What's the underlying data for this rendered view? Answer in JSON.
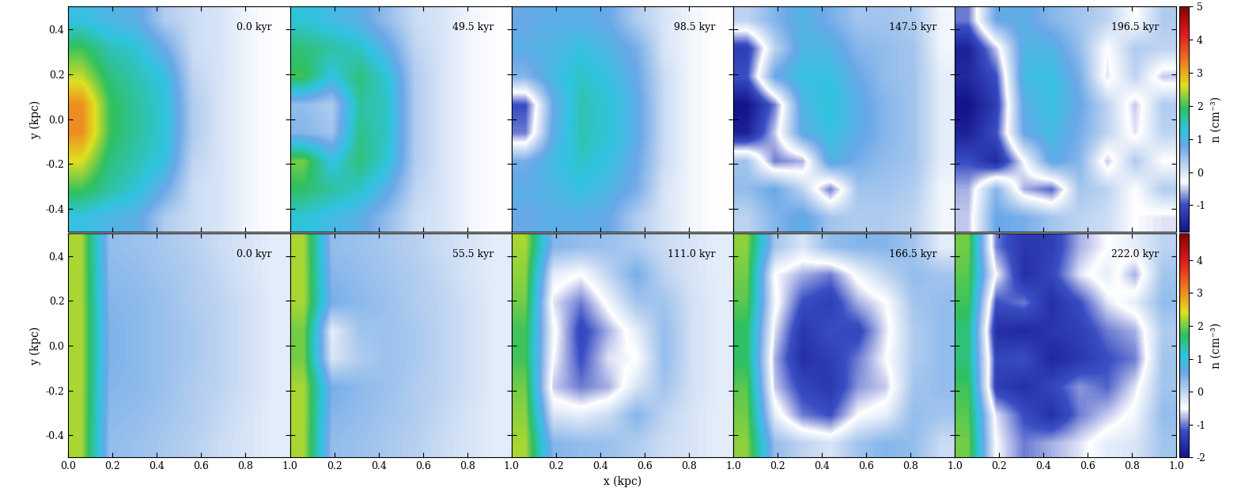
{
  "chart_data": [
    {
      "type": "heatmap",
      "annotation": "0.0 kyr",
      "xlim": [
        0,
        1
      ],
      "ylim": [
        -0.5,
        0.5
      ],
      "xticks": [
        {
          "value": 0,
          "label": "0.0"
        },
        0.2,
        0.4,
        0.6,
        0.8,
        {
          "value": 1,
          "label": "1.0"
        }
      ],
      "yticks": [
        -0.4,
        -0.2,
        {
          "value": 0,
          "label": "0.0"
        },
        0.2,
        0.4
      ],
      "tick_labels": "y",
      "y_label": "y (kpc)",
      "color_range": [
        -1.8,
        5
      ],
      "cells": [
        [
          1.2,
          1.0,
          0.9,
          0.3,
          0.1,
          0.0,
          -0.2,
          -0.3
        ],
        [
          2.0,
          1.5,
          1.3,
          0.8,
          0.1,
          0.0,
          -0.2,
          -0.3
        ],
        [
          2.5,
          1.8,
          1.5,
          1.2,
          0.2,
          0.0,
          -0.2,
          -0.3
        ],
        [
          3.2,
          2.0,
          1.6,
          1.3,
          0.3,
          0.0,
          -0.2,
          -0.3
        ],
        [
          3.2,
          2.0,
          1.6,
          1.3,
          0.3,
          0.0,
          -0.2,
          -0.3
        ],
        [
          2.6,
          1.8,
          1.5,
          1.2,
          0.2,
          0.0,
          -0.2,
          -0.3
        ],
        [
          2.0,
          1.6,
          1.3,
          0.8,
          0.1,
          0.0,
          -0.2,
          -0.3
        ],
        [
          1.2,
          1.0,
          0.9,
          0.3,
          0.1,
          0.0,
          -0.2,
          -0.3
        ]
      ]
    },
    {
      "type": "heatmap",
      "annotation": "49.5 kyr",
      "xlim": [
        0,
        1
      ],
      "ylim": [
        -0.5,
        0.5
      ],
      "xticks": [
        0.2,
        0.4,
        0.6,
        0.8,
        {
          "value": 1,
          "label": "1.0"
        }
      ],
      "yticks": [
        -0.4,
        -0.2,
        {
          "value": 0,
          "label": "0.0"
        },
        0.2,
        0.4
      ],
      "tick_labels": false,
      "color_range": [
        -1.8,
        5
      ],
      "cells": [
        [
          1.3,
          1.1,
          0.9,
          0.5,
          0.1,
          0.0,
          -0.2,
          -0.3
        ],
        [
          1.8,
          1.6,
          1.4,
          0.9,
          0.2,
          0.0,
          -0.2,
          -0.3
        ],
        [
          2.0,
          1.2,
          1.8,
          1.3,
          0.3,
          0.0,
          -0.2,
          -0.3
        ],
        [
          0.5,
          0.3,
          1.6,
          1.4,
          0.3,
          0.0,
          -0.2,
          -0.3
        ],
        [
          0.6,
          0.4,
          1.7,
          1.4,
          0.3,
          0.0,
          -0.2,
          -0.3
        ],
        [
          2.2,
          1.2,
          1.8,
          1.3,
          0.3,
          0.0,
          -0.2,
          -0.3
        ],
        [
          1.9,
          1.6,
          1.4,
          0.9,
          0.2,
          0.0,
          -0.2,
          -0.3
        ],
        [
          1.3,
          1.1,
          0.9,
          0.5,
          0.1,
          0.0,
          -0.2,
          -0.3
        ]
      ]
    },
    {
      "type": "heatmap",
      "annotation": "98.5 kyr",
      "xlim": [
        0,
        1
      ],
      "ylim": [
        -0.5,
        0.5
      ],
      "xticks": [
        0.2,
        0.4,
        0.6,
        0.8,
        {
          "value": 1,
          "label": "1.0"
        }
      ],
      "yticks": [
        -0.4,
        -0.2,
        {
          "value": 0,
          "label": "0.0"
        },
        0.2,
        0.4
      ],
      "tick_labels": false,
      "color_range": [
        -1.8,
        5
      ],
      "cells": [
        [
          0.8,
          0.9,
          0.9,
          0.8,
          0.3,
          0.0,
          -0.2,
          -0.3
        ],
        [
          0.9,
          1.0,
          1.2,
          1.0,
          0.7,
          0.0,
          -0.2,
          -0.3
        ],
        [
          0.6,
          1.1,
          1.4,
          1.2,
          0.8,
          0.1,
          -0.2,
          -0.3
        ],
        [
          -1.0,
          0.8,
          1.5,
          1.3,
          0.9,
          0.1,
          -0.2,
          -0.3
        ],
        [
          -0.8,
          0.9,
          1.5,
          1.3,
          0.9,
          0.1,
          -0.2,
          -0.3
        ],
        [
          0.7,
          1.1,
          1.4,
          1.2,
          0.8,
          0.1,
          -0.2,
          -0.3
        ],
        [
          0.9,
          1.0,
          1.2,
          1.0,
          0.7,
          0.0,
          -0.2,
          -0.3
        ],
        [
          0.8,
          0.9,
          0.9,
          0.8,
          0.3,
          0.0,
          -0.2,
          -0.3
        ]
      ]
    },
    {
      "type": "heatmap",
      "annotation": "147.5 kyr",
      "xlim": [
        0,
        1
      ],
      "ylim": [
        -0.5,
        0.5
      ],
      "xticks": [
        0.2,
        0.4,
        0.6,
        0.8,
        {
          "value": 1,
          "label": "1.0"
        }
      ],
      "yticks": [
        -0.4,
        -0.2,
        {
          "value": 0,
          "label": "0.0"
        },
        0.2,
        0.4
      ],
      "tick_labels": false,
      "color_range": [
        -1.8,
        5
      ],
      "cells": [
        [
          0.2,
          0.6,
          1.0,
          0.7,
          0.4,
          0.4,
          0.3,
          -0.2
        ],
        [
          -1.2,
          0.2,
          1.0,
          1.0,
          0.6,
          0.5,
          0.4,
          -0.2
        ],
        [
          -1.0,
          0.8,
          1.2,
          1.2,
          0.8,
          0.5,
          0.4,
          -0.1
        ],
        [
          -1.8,
          -0.8,
          1.0,
          1.3,
          0.9,
          0.6,
          0.4,
          -0.1
        ],
        [
          -1.6,
          -0.5,
          0.9,
          1.2,
          0.9,
          0.6,
          0.4,
          -0.1
        ],
        [
          0.4,
          -0.8,
          -0.6,
          1.0,
          0.7,
          0.5,
          0.4,
          -0.1
        ],
        [
          0.5,
          0.8,
          0.2,
          -0.8,
          0.4,
          0.4,
          0.3,
          -0.2
        ],
        [
          0.2,
          0.6,
          0.9,
          0.4,
          0.3,
          0.3,
          0.2,
          -0.2
        ]
      ]
    },
    {
      "type": "heatmap",
      "annotation": "196.5 kyr",
      "xlim": [
        0,
        1
      ],
      "ylim": [
        -0.5,
        0.5
      ],
      "xticks": [
        0.2,
        0.4,
        0.6,
        0.8,
        {
          "value": 1,
          "label": "1.0"
        }
      ],
      "yticks": [
        -0.4,
        -0.2,
        {
          "value": 0,
          "label": "0.0"
        },
        0.2,
        0.4
      ],
      "tick_labels": false,
      "color_range": [
        -1.8,
        5
      ],
      "colorbar": {
        "label": "n (cm⁻³)",
        "ticks": [
          -1,
          0,
          1,
          2,
          3,
          4,
          5
        ]
      },
      "cells": [
        [
          -0.8,
          0.8,
          0.9,
          0.6,
          0.4,
          0.2,
          -0.3,
          0.3
        ],
        [
          -1.6,
          -0.5,
          1.0,
          1.0,
          0.5,
          -0.3,
          0.3,
          0.2
        ],
        [
          -1.5,
          -1.0,
          1.1,
          1.2,
          0.7,
          -0.4,
          0.2,
          -0.5
        ],
        [
          -1.8,
          -1.2,
          0.9,
          1.2,
          0.8,
          0.2,
          -0.5,
          0.3
        ],
        [
          -1.6,
          -1.0,
          0.8,
          1.1,
          0.7,
          0.2,
          -0.4,
          0.2
        ],
        [
          -1.0,
          -1.5,
          -0.3,
          0.9,
          0.6,
          -0.5,
          0.3,
          -0.3
        ],
        [
          -0.6,
          0.6,
          -0.6,
          -0.9,
          0.4,
          0.2,
          -0.3,
          0.3
        ],
        [
          -0.5,
          0.8,
          0.7,
          0.4,
          0.2,
          0.1,
          -0.3,
          -0.4
        ]
      ]
    },
    {
      "type": "heatmap",
      "annotation": "0.0 kyr",
      "xlim": [
        0,
        1
      ],
      "ylim": [
        -0.5,
        0.5
      ],
      "xticks": [
        {
          "value": 0,
          "label": "0.0"
        },
        0.2,
        0.4,
        0.6,
        0.8,
        {
          "value": 1,
          "label": "1.0"
        }
      ],
      "yticks": [
        -0.4,
        -0.2,
        {
          "value": 0,
          "label": "0.0"
        },
        0.2,
        0.4
      ],
      "tick_labels": true,
      "y_label": "y (kpc)",
      "color_range": [
        -2,
        4.8
      ],
      "cells": [
        [
          2.2,
          0.3,
          0.25,
          0.15,
          0.05,
          -0.1,
          -0.2,
          -0.3
        ],
        [
          2.2,
          0.35,
          0.3,
          0.2,
          0.1,
          -0.05,
          -0.2,
          -0.3
        ],
        [
          2.2,
          0.4,
          0.35,
          0.25,
          0.1,
          0.0,
          -0.15,
          -0.3
        ],
        [
          2.2,
          0.45,
          0.35,
          0.25,
          0.15,
          0.0,
          -0.15,
          -0.3
        ],
        [
          2.2,
          0.45,
          0.35,
          0.25,
          0.15,
          0.0,
          -0.15,
          -0.3
        ],
        [
          2.2,
          0.4,
          0.35,
          0.25,
          0.1,
          0.0,
          -0.15,
          -0.3
        ],
        [
          2.2,
          0.35,
          0.3,
          0.2,
          0.1,
          -0.05,
          -0.2,
          -0.3
        ],
        [
          2.2,
          0.3,
          0.25,
          0.15,
          0.05,
          -0.1,
          -0.2,
          -0.3
        ]
      ]
    },
    {
      "type": "heatmap",
      "annotation": "55.5 kyr",
      "xlim": [
        0,
        1
      ],
      "ylim": [
        -0.5,
        0.5
      ],
      "xticks": [
        0.2,
        0.4,
        0.6,
        0.8,
        {
          "value": 1,
          "label": "1.0"
        }
      ],
      "yticks": [
        -0.4,
        -0.2,
        {
          "value": 0,
          "label": "0.0"
        },
        0.2,
        0.4
      ],
      "tick_labels": "x",
      "color_range": [
        -2,
        4.8
      ],
      "cells": [
        [
          2.2,
          0.3,
          0.25,
          0.15,
          0.05,
          -0.1,
          -0.2,
          -0.3
        ],
        [
          2.2,
          0.4,
          0.3,
          0.2,
          0.1,
          -0.05,
          -0.2,
          -0.3
        ],
        [
          2.2,
          0.5,
          0.35,
          0.25,
          0.1,
          0.0,
          -0.15,
          -0.3
        ],
        [
          2.0,
          -0.3,
          0.2,
          0.25,
          0.15,
          0.0,
          -0.15,
          -0.3
        ],
        [
          2.0,
          -0.2,
          0.1,
          0.25,
          0.15,
          0.0,
          -0.15,
          -0.3
        ],
        [
          2.2,
          0.5,
          0.35,
          0.25,
          0.1,
          0.0,
          -0.15,
          -0.3
        ],
        [
          2.2,
          0.4,
          0.3,
          0.2,
          0.1,
          -0.05,
          -0.2,
          -0.3
        ],
        [
          2.2,
          0.3,
          0.25,
          0.15,
          0.05,
          -0.1,
          -0.2,
          -0.3
        ]
      ]
    },
    {
      "type": "heatmap",
      "annotation": "111.0 kyr",
      "xlim": [
        0,
        1
      ],
      "ylim": [
        -0.5,
        0.5
      ],
      "xticks": [
        0.2,
        0.4,
        0.6,
        0.8,
        {
          "value": 1,
          "label": "1.0"
        }
      ],
      "yticks": [
        -0.4,
        -0.2,
        {
          "value": 0,
          "label": "0.0"
        },
        0.2,
        0.4
      ],
      "tick_labels": "x",
      "x_label": "x (kpc)",
      "color_range": [
        -2,
        4.8
      ],
      "cells": [
        [
          2.2,
          0.4,
          0.3,
          0.25,
          0.1,
          -0.1,
          -0.2,
          -0.3
        ],
        [
          2.1,
          -0.3,
          -0.5,
          0.0,
          0.5,
          0.0,
          -0.2,
          -0.3
        ],
        [
          2.0,
          -0.6,
          -1.0,
          -0.4,
          0.2,
          0.2,
          -0.15,
          -0.3
        ],
        [
          1.8,
          -0.4,
          -1.3,
          -0.8,
          -0.3,
          0.3,
          -0.15,
          -0.3
        ],
        [
          1.8,
          -0.5,
          -1.2,
          -0.6,
          -0.5,
          0.3,
          -0.15,
          -0.3
        ],
        [
          2.0,
          -0.7,
          -1.0,
          -0.8,
          -0.2,
          0.2,
          -0.15,
          -0.3
        ],
        [
          2.1,
          -0.2,
          -0.3,
          -0.1,
          0.4,
          0.0,
          -0.2,
          -0.3
        ],
        [
          2.2,
          0.4,
          0.3,
          0.25,
          0.1,
          -0.1,
          -0.2,
          -0.3
        ]
      ]
    },
    {
      "type": "heatmap",
      "annotation": "166.5 kyr",
      "xlim": [
        0,
        1
      ],
      "ylim": [
        -0.5,
        0.5
      ],
      "xticks": [
        0.2,
        0.4,
        0.6,
        0.8,
        {
          "value": 1,
          "label": "1.0"
        }
      ],
      "yticks": [
        -0.4,
        -0.2,
        {
          "value": 0,
          "label": "0.0"
        },
        0.2,
        0.4
      ],
      "tick_labels": "x",
      "color_range": [
        -2,
        4.8
      ],
      "cells": [
        [
          2.1,
          0.2,
          -0.2,
          0.3,
          0.4,
          0.4,
          0.2,
          -0.3
        ],
        [
          2.0,
          -0.5,
          -0.8,
          -1.0,
          -0.4,
          0.0,
          0.3,
          0.2
        ],
        [
          1.9,
          -0.4,
          -1.2,
          -1.4,
          -0.8,
          -0.5,
          0.2,
          0.3
        ],
        [
          1.7,
          -0.6,
          -1.5,
          -1.2,
          -1.3,
          -0.6,
          0.1,
          0.3
        ],
        [
          1.7,
          -0.8,
          -1.6,
          -1.4,
          -1.0,
          -0.5,
          0.1,
          0.3
        ],
        [
          1.9,
          -0.7,
          -1.3,
          -1.5,
          -0.9,
          -0.7,
          0.2,
          0.3
        ],
        [
          2.0,
          -0.3,
          -1.0,
          -1.2,
          -0.5,
          -0.3,
          0.3,
          0.2
        ],
        [
          2.1,
          0.3,
          0.0,
          -0.2,
          0.2,
          0.4,
          0.3,
          -0.1
        ]
      ]
    },
    {
      "type": "heatmap",
      "annotation": "222.0 kyr",
      "xlim": [
        0,
        1
      ],
      "ylim": [
        -0.5,
        0.5
      ],
      "xticks": [
        0.2,
        0.4,
        0.6,
        0.8,
        {
          "value": 1,
          "label": "1.0"
        }
      ],
      "yticks": [
        -0.4,
        -0.2,
        {
          "value": 0,
          "label": "0.0"
        },
        0.2,
        0.4
      ],
      "tick_labels": "x",
      "color_range": [
        -2,
        4.8
      ],
      "colorbar": {
        "label": "n (cm⁻³)",
        "ticks": [
          -2,
          -1,
          0,
          1,
          2,
          3,
          4
        ]
      },
      "cells": [
        [
          2.0,
          -1.0,
          -1.5,
          -1.4,
          -0.8,
          -0.5,
          -0.3,
          0.0
        ],
        [
          1.9,
          -0.5,
          -1.6,
          -1.3,
          -0.6,
          -0.3,
          -0.8,
          0.2
        ],
        [
          1.8,
          -1.2,
          -1.0,
          -1.6,
          -1.2,
          -0.6,
          -0.3,
          0.3
        ],
        [
          1.6,
          -1.6,
          -1.7,
          -1.5,
          -1.4,
          -1.0,
          -0.8,
          0.1
        ],
        [
          1.6,
          -1.3,
          -1.2,
          -1.7,
          -1.5,
          -1.2,
          -1.0,
          0.2
        ],
        [
          1.8,
          -1.4,
          -1.6,
          -1.3,
          -0.9,
          -1.1,
          -0.6,
          0.2
        ],
        [
          1.9,
          -0.6,
          -1.2,
          -1.6,
          -1.0,
          -0.7,
          -0.4,
          0.3
        ],
        [
          2.0,
          -0.5,
          -1.0,
          -0.8,
          -0.6,
          -0.3,
          -0.2,
          0.2
        ]
      ]
    }
  ]
}
